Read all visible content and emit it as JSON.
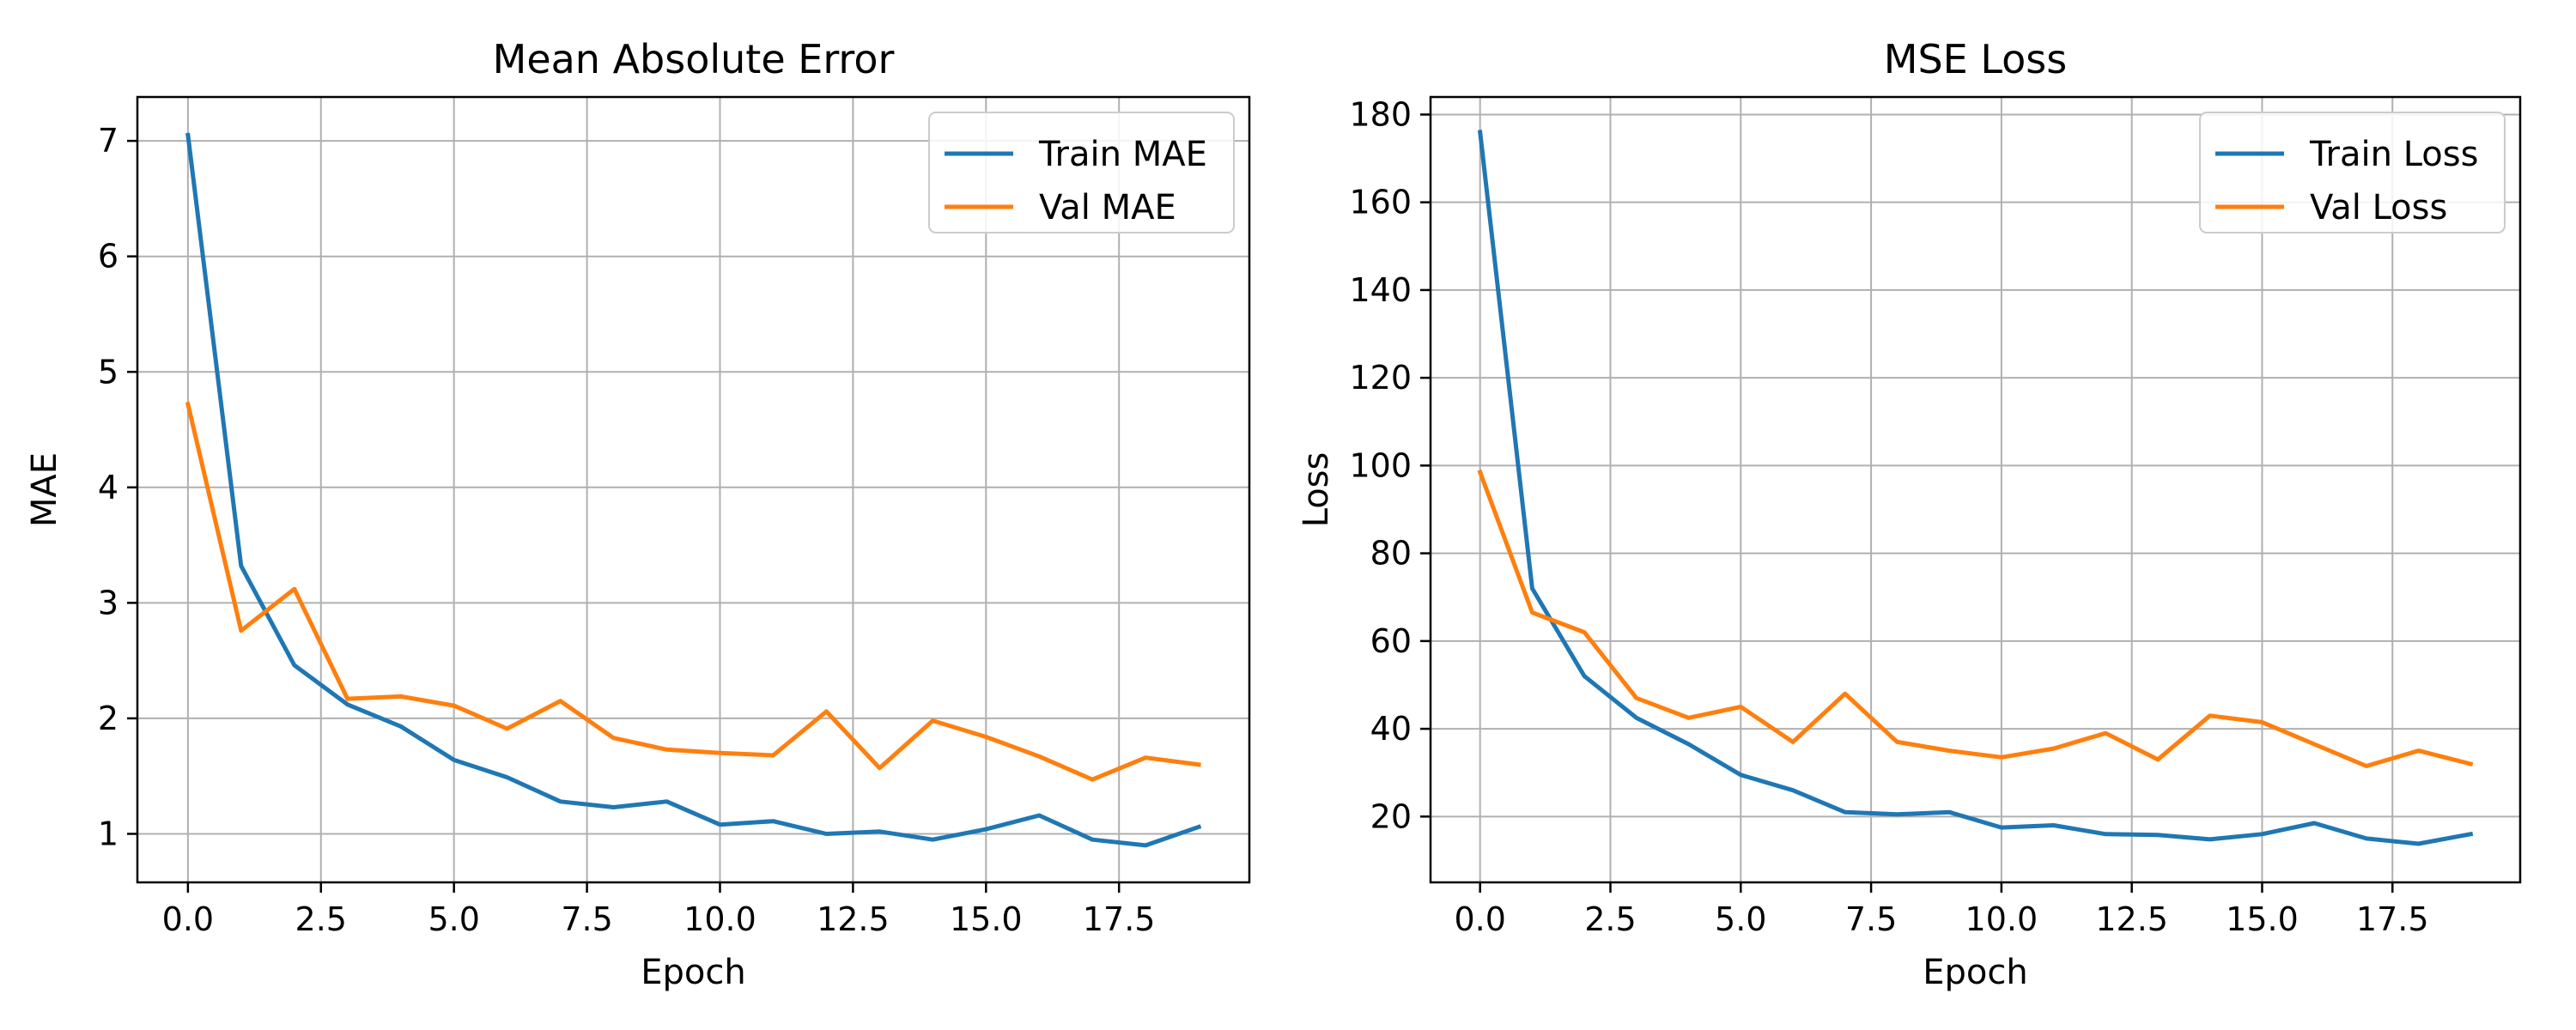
{
  "chart_data": [
    {
      "type": "line",
      "title": "Mean Absolute Error",
      "xlabel": "Epoch",
      "ylabel": "MAE",
      "x": [
        0,
        1,
        2,
        3,
        4,
        5,
        6,
        7,
        8,
        9,
        10,
        11,
        12,
        13,
        14,
        15,
        16,
        17,
        18,
        19
      ],
      "xlim": [
        -0.95,
        19.95
      ],
      "ylim": [
        0.58,
        7.38
      ],
      "xticks": [
        0,
        2.5,
        5,
        7.5,
        10,
        12.5,
        15,
        17.5
      ],
      "xtick_labels": [
        "0.0",
        "2.5",
        "5.0",
        "7.5",
        "10.0",
        "12.5",
        "15.0",
        "17.5"
      ],
      "yticks": [
        1,
        2,
        3,
        4,
        5,
        6,
        7
      ],
      "ytick_labels": [
        "1",
        "2",
        "3",
        "4",
        "5",
        "6",
        "7"
      ],
      "grid": true,
      "legend_position": "top-right",
      "series": [
        {
          "name": "Train MAE",
          "color": "#1f77b4",
          "values": [
            7.05,
            3.32,
            2.46,
            2.12,
            1.93,
            1.64,
            1.49,
            1.28,
            1.23,
            1.28,
            1.08,
            1.11,
            1.0,
            1.02,
            0.95,
            1.04,
            1.16,
            0.95,
            0.9,
            1.06
          ]
        },
        {
          "name": "Val MAE",
          "color": "#ff7f0e",
          "values": [
            4.72,
            2.76,
            3.12,
            2.17,
            2.19,
            2.11,
            1.91,
            2.15,
            1.83,
            1.73,
            1.7,
            1.68,
            2.06,
            1.57,
            1.98,
            1.84,
            1.67,
            1.47,
            1.66,
            1.6
          ]
        }
      ]
    },
    {
      "type": "line",
      "title": "MSE Loss",
      "xlabel": "Epoch",
      "ylabel": "Loss",
      "x": [
        0,
        1,
        2,
        3,
        4,
        5,
        6,
        7,
        8,
        9,
        10,
        11,
        12,
        13,
        14,
        15,
        16,
        17,
        18,
        19
      ],
      "xlim": [
        -0.95,
        19.95
      ],
      "ylim": [
        5,
        184
      ],
      "xticks": [
        0,
        2.5,
        5,
        7.5,
        10,
        12.5,
        15,
        17.5
      ],
      "xtick_labels": [
        "0.0",
        "2.5",
        "5.0",
        "7.5",
        "10.0",
        "12.5",
        "15.0",
        "17.5"
      ],
      "yticks": [
        20,
        40,
        60,
        80,
        100,
        120,
        140,
        160,
        180
      ],
      "ytick_labels": [
        "20",
        "40",
        "60",
        "80",
        "100",
        "120",
        "140",
        "160",
        "180"
      ],
      "grid": true,
      "legend_position": "top-right",
      "series": [
        {
          "name": "Train Loss",
          "color": "#1f77b4",
          "values": [
            176,
            72,
            52,
            42.5,
            36.5,
            29.5,
            26,
            21,
            20.5,
            21,
            17.5,
            18,
            16,
            15.8,
            14.8,
            16,
            18.5,
            15,
            13.8,
            16
          ]
        },
        {
          "name": "Val Loss",
          "color": "#ff7f0e",
          "values": [
            98.5,
            66.5,
            62,
            47,
            42.5,
            45,
            37,
            48,
            37,
            35,
            33.5,
            35.5,
            39,
            33,
            43,
            41.5,
            36.5,
            31.5,
            35,
            32
          ]
        }
      ]
    }
  ]
}
